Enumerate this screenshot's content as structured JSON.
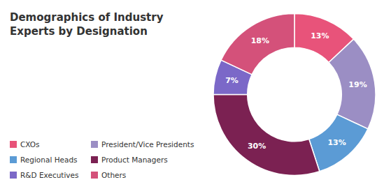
{
  "chart_data": {
    "type": "pie",
    "title": "Demographics of Industry\nExperts by Designation",
    "categories": [
      "CXOs",
      "President/Vice Presidents",
      "Regional Heads",
      "Product Managers",
      "R&D Executives",
      "Others"
    ],
    "values": [
      13,
      19,
      13,
      30,
      7,
      18
    ],
    "value_labels": [
      "13%",
      "19%",
      "13%",
      "30%",
      "7%",
      "18%"
    ],
    "colors": [
      "#E8537A",
      "#9B8EC4",
      "#5B9BD5",
      "#7B2152",
      "#7B68C8",
      "#D4517A"
    ],
    "data_labels": true,
    "legend": "bottom-left"
  }
}
